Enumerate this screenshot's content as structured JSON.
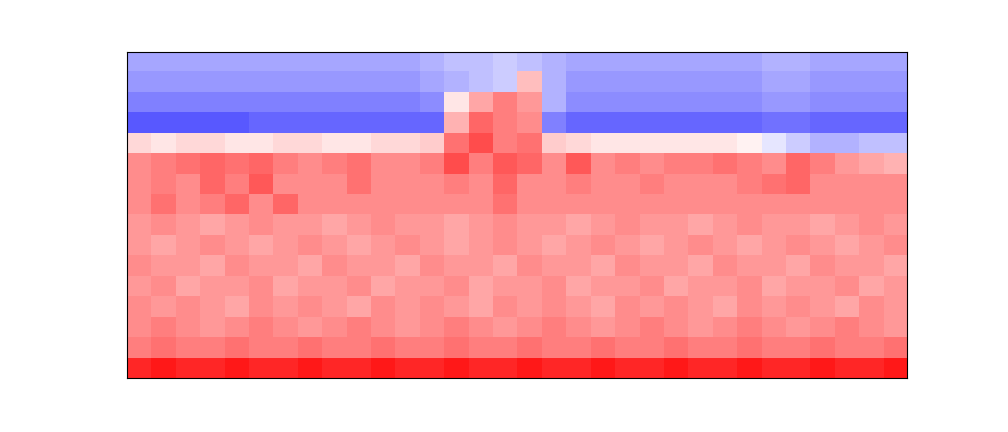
{
  "chart_data": {
    "type": "heatmap",
    "color": "bwr",
    "tick_labels": false,
    "color_range": [
      -1,
      1
    ],
    "cells": [
      [
        -0.35,
        -0.35,
        -0.35,
        -0.35,
        -0.35,
        -0.35,
        -0.35,
        -0.35,
        -0.35,
        -0.35,
        -0.35,
        -0.35,
        -0.3,
        -0.25,
        -0.25,
        -0.2,
        -0.25,
        -0.3,
        -0.35,
        -0.35,
        -0.35,
        -0.35,
        -0.35,
        -0.35,
        -0.35,
        -0.35,
        -0.3,
        -0.3,
        -0.35,
        -0.35,
        -0.35,
        -0.35
      ],
      [
        -0.4,
        -0.4,
        -0.4,
        -0.4,
        -0.4,
        -0.4,
        -0.4,
        -0.4,
        -0.4,
        -0.4,
        -0.4,
        -0.4,
        -0.35,
        -0.3,
        -0.25,
        -0.2,
        0.25,
        -0.3,
        -0.4,
        -0.4,
        -0.4,
        -0.4,
        -0.4,
        -0.4,
        -0.4,
        -0.4,
        -0.35,
        -0.35,
        -0.4,
        -0.4,
        -0.4,
        -0.4
      ],
      [
        -0.5,
        -0.5,
        -0.5,
        -0.5,
        -0.5,
        -0.5,
        -0.5,
        -0.5,
        -0.5,
        -0.5,
        -0.5,
        -0.5,
        -0.45,
        0.1,
        0.35,
        0.5,
        0.4,
        -0.3,
        -0.45,
        -0.45,
        -0.45,
        -0.45,
        -0.45,
        -0.45,
        -0.45,
        -0.45,
        -0.4,
        -0.4,
        -0.45,
        -0.45,
        -0.45,
        -0.45
      ],
      [
        -0.65,
        -0.65,
        -0.65,
        -0.65,
        -0.65,
        -0.6,
        -0.6,
        -0.6,
        -0.6,
        -0.6,
        -0.6,
        -0.6,
        -0.6,
        0.3,
        0.6,
        0.5,
        0.45,
        -0.5,
        -0.6,
        -0.6,
        -0.6,
        -0.6,
        -0.6,
        -0.6,
        -0.6,
        -0.6,
        -0.55,
        -0.55,
        -0.6,
        -0.6,
        -0.6,
        -0.6
      ],
      [
        0.15,
        0.1,
        0.15,
        0.15,
        0.1,
        0.1,
        0.15,
        0.15,
        0.1,
        0.1,
        0.15,
        0.15,
        0.2,
        0.55,
        0.7,
        0.5,
        0.55,
        0.2,
        0.15,
        0.1,
        0.1,
        0.1,
        0.1,
        0.1,
        0.1,
        0.05,
        -0.1,
        -0.2,
        -0.3,
        -0.3,
        -0.25,
        -0.25
      ],
      [
        0.45,
        0.5,
        0.55,
        0.6,
        0.55,
        0.6,
        0.5,
        0.45,
        0.5,
        0.55,
        0.45,
        0.45,
        0.5,
        0.7,
        0.5,
        0.65,
        0.6,
        0.45,
        0.65,
        0.45,
        0.5,
        0.45,
        0.5,
        0.5,
        0.55,
        0.5,
        0.45,
        0.6,
        0.5,
        0.4,
        0.35,
        0.3
      ],
      [
        0.45,
        0.5,
        0.45,
        0.6,
        0.5,
        0.65,
        0.45,
        0.45,
        0.45,
        0.55,
        0.45,
        0.45,
        0.45,
        0.5,
        0.45,
        0.6,
        0.45,
        0.45,
        0.5,
        0.45,
        0.45,
        0.5,
        0.45,
        0.45,
        0.45,
        0.5,
        0.55,
        0.6,
        0.45,
        0.45,
        0.45,
        0.45
      ],
      [
        0.45,
        0.55,
        0.45,
        0.5,
        0.6,
        0.45,
        0.6,
        0.45,
        0.45,
        0.45,
        0.45,
        0.45,
        0.45,
        0.45,
        0.45,
        0.55,
        0.45,
        0.45,
        0.45,
        0.45,
        0.45,
        0.45,
        0.45,
        0.45,
        0.45,
        0.45,
        0.45,
        0.45,
        0.45,
        0.45,
        0.45,
        0.45
      ],
      [
        0.4,
        0.45,
        0.4,
        0.35,
        0.4,
        0.45,
        0.4,
        0.4,
        0.35,
        0.4,
        0.45,
        0.4,
        0.4,
        0.35,
        0.4,
        0.45,
        0.4,
        0.4,
        0.35,
        0.4,
        0.45,
        0.4,
        0.4,
        0.35,
        0.4,
        0.45,
        0.4,
        0.4,
        0.35,
        0.4,
        0.45,
        0.4
      ],
      [
        0.4,
        0.35,
        0.4,
        0.45,
        0.4,
        0.35,
        0.4,
        0.45,
        0.4,
        0.35,
        0.4,
        0.45,
        0.4,
        0.35,
        0.4,
        0.45,
        0.4,
        0.35,
        0.4,
        0.45,
        0.4,
        0.35,
        0.4,
        0.45,
        0.4,
        0.35,
        0.4,
        0.45,
        0.4,
        0.35,
        0.4,
        0.45
      ],
      [
        0.45,
        0.4,
        0.4,
        0.35,
        0.45,
        0.4,
        0.4,
        0.35,
        0.45,
        0.4,
        0.4,
        0.35,
        0.45,
        0.4,
        0.4,
        0.35,
        0.45,
        0.4,
        0.4,
        0.35,
        0.45,
        0.4,
        0.4,
        0.35,
        0.45,
        0.4,
        0.4,
        0.35,
        0.45,
        0.4,
        0.4,
        0.35
      ],
      [
        0.4,
        0.45,
        0.35,
        0.4,
        0.4,
        0.45,
        0.35,
        0.4,
        0.4,
        0.45,
        0.35,
        0.4,
        0.4,
        0.45,
        0.35,
        0.4,
        0.4,
        0.45,
        0.35,
        0.4,
        0.4,
        0.45,
        0.35,
        0.4,
        0.4,
        0.45,
        0.35,
        0.4,
        0.4,
        0.45,
        0.35,
        0.4
      ],
      [
        0.45,
        0.4,
        0.45,
        0.4,
        0.35,
        0.45,
        0.4,
        0.45,
        0.4,
        0.35,
        0.45,
        0.4,
        0.45,
        0.4,
        0.35,
        0.45,
        0.4,
        0.45,
        0.4,
        0.35,
        0.45,
        0.4,
        0.45,
        0.4,
        0.35,
        0.45,
        0.4,
        0.45,
        0.4,
        0.35,
        0.45,
        0.4
      ],
      [
        0.45,
        0.5,
        0.45,
        0.4,
        0.45,
        0.5,
        0.45,
        0.4,
        0.45,
        0.5,
        0.45,
        0.4,
        0.45,
        0.5,
        0.45,
        0.4,
        0.45,
        0.5,
        0.45,
        0.4,
        0.45,
        0.5,
        0.45,
        0.4,
        0.45,
        0.5,
        0.45,
        0.4,
        0.45,
        0.5,
        0.45,
        0.4
      ],
      [
        0.5,
        0.55,
        0.5,
        0.5,
        0.55,
        0.5,
        0.5,
        0.55,
        0.5,
        0.5,
        0.55,
        0.5,
        0.5,
        0.55,
        0.5,
        0.5,
        0.55,
        0.5,
        0.5,
        0.55,
        0.5,
        0.5,
        0.55,
        0.5,
        0.5,
        0.55,
        0.5,
        0.5,
        0.55,
        0.5,
        0.5,
        0.55
      ],
      [
        0.85,
        0.9,
        0.85,
        0.85,
        0.9,
        0.85,
        0.85,
        0.9,
        0.85,
        0.85,
        0.9,
        0.85,
        0.85,
        0.9,
        0.85,
        0.85,
        0.9,
        0.85,
        0.85,
        0.9,
        0.85,
        0.85,
        0.9,
        0.85,
        0.85,
        0.9,
        0.85,
        0.85,
        0.9,
        0.85,
        0.85,
        0.9
      ]
    ]
  }
}
